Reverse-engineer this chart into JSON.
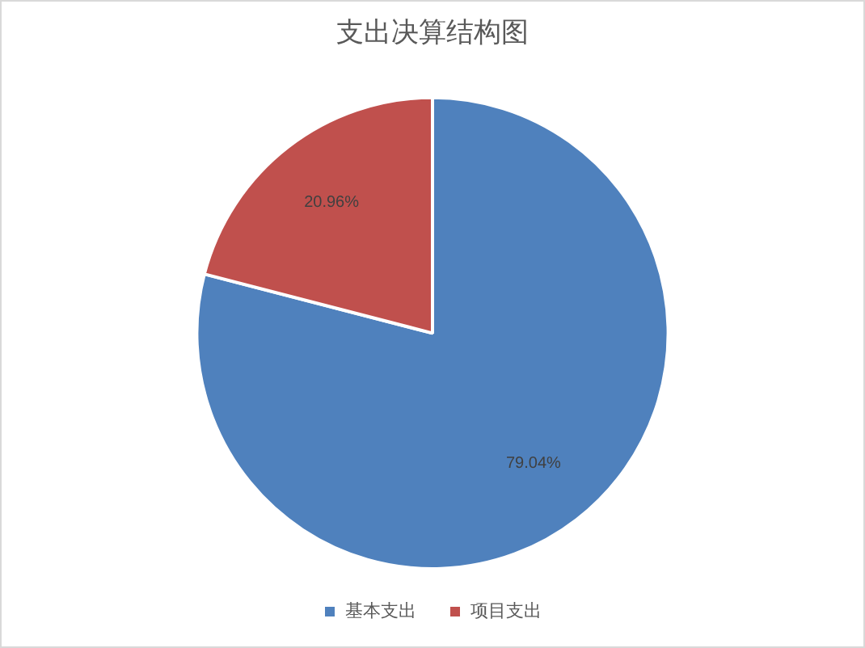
{
  "chart_data": {
    "type": "pie",
    "title": "支出决算结构图",
    "categories": [
      "基本支出",
      "项目支出"
    ],
    "values": [
      79.04,
      20.96
    ],
    "colors": [
      "#4f81bd",
      "#c0504d"
    ],
    "value_labels": [
      "79.04%",
      "20.96%"
    ],
    "legend": "bottom"
  }
}
